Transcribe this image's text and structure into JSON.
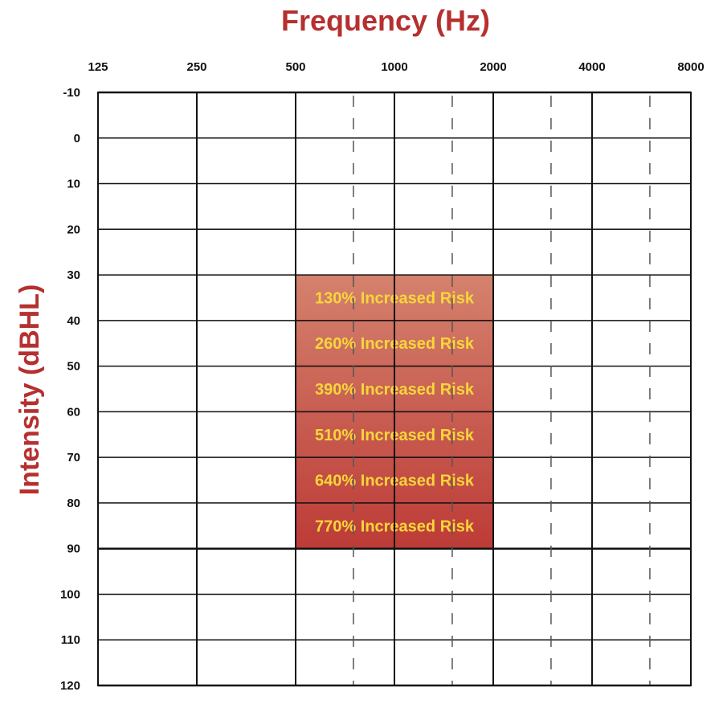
{
  "chart_data": {
    "type": "heatmap",
    "title": "Frequency (Hz)",
    "ylabel": "Intensity (dBHL)",
    "x_tick_labels": [
      "125",
      "250",
      "500",
      "1000",
      "2000",
      "4000",
      "8000"
    ],
    "x_intermediate_ticks": [
      750,
      1500,
      3000,
      6000
    ],
    "y_ticks": [
      -10,
      0,
      10,
      20,
      30,
      40,
      50,
      60,
      70,
      80,
      90,
      100,
      110,
      120
    ],
    "y_range": [
      -10,
      120
    ],
    "y_inverted": true,
    "x_scale": "log2",
    "grid": true,
    "risk_region": {
      "x_range": [
        500,
        2000
      ],
      "bands": [
        {
          "y_range": [
            30,
            40
          ],
          "label": "130% Increased Risk"
        },
        {
          "y_range": [
            40,
            50
          ],
          "label": "260% Increased Risk"
        },
        {
          "y_range": [
            50,
            60
          ],
          "label": "390% Increased Risk"
        },
        {
          "y_range": [
            60,
            70
          ],
          "label": "510% Increased Risk"
        },
        {
          "y_range": [
            70,
            80
          ],
          "label": "640% Increased Risk"
        },
        {
          "y_range": [
            80,
            90
          ],
          "label": "770% Increased Risk"
        }
      ]
    },
    "colors": {
      "title": "#b5302f",
      "band_top": "#d4826d",
      "band_bottom": "#bd3b37",
      "band_text": "#f7d63a",
      "grid": "#111111",
      "minor_grid": "#555555"
    }
  }
}
